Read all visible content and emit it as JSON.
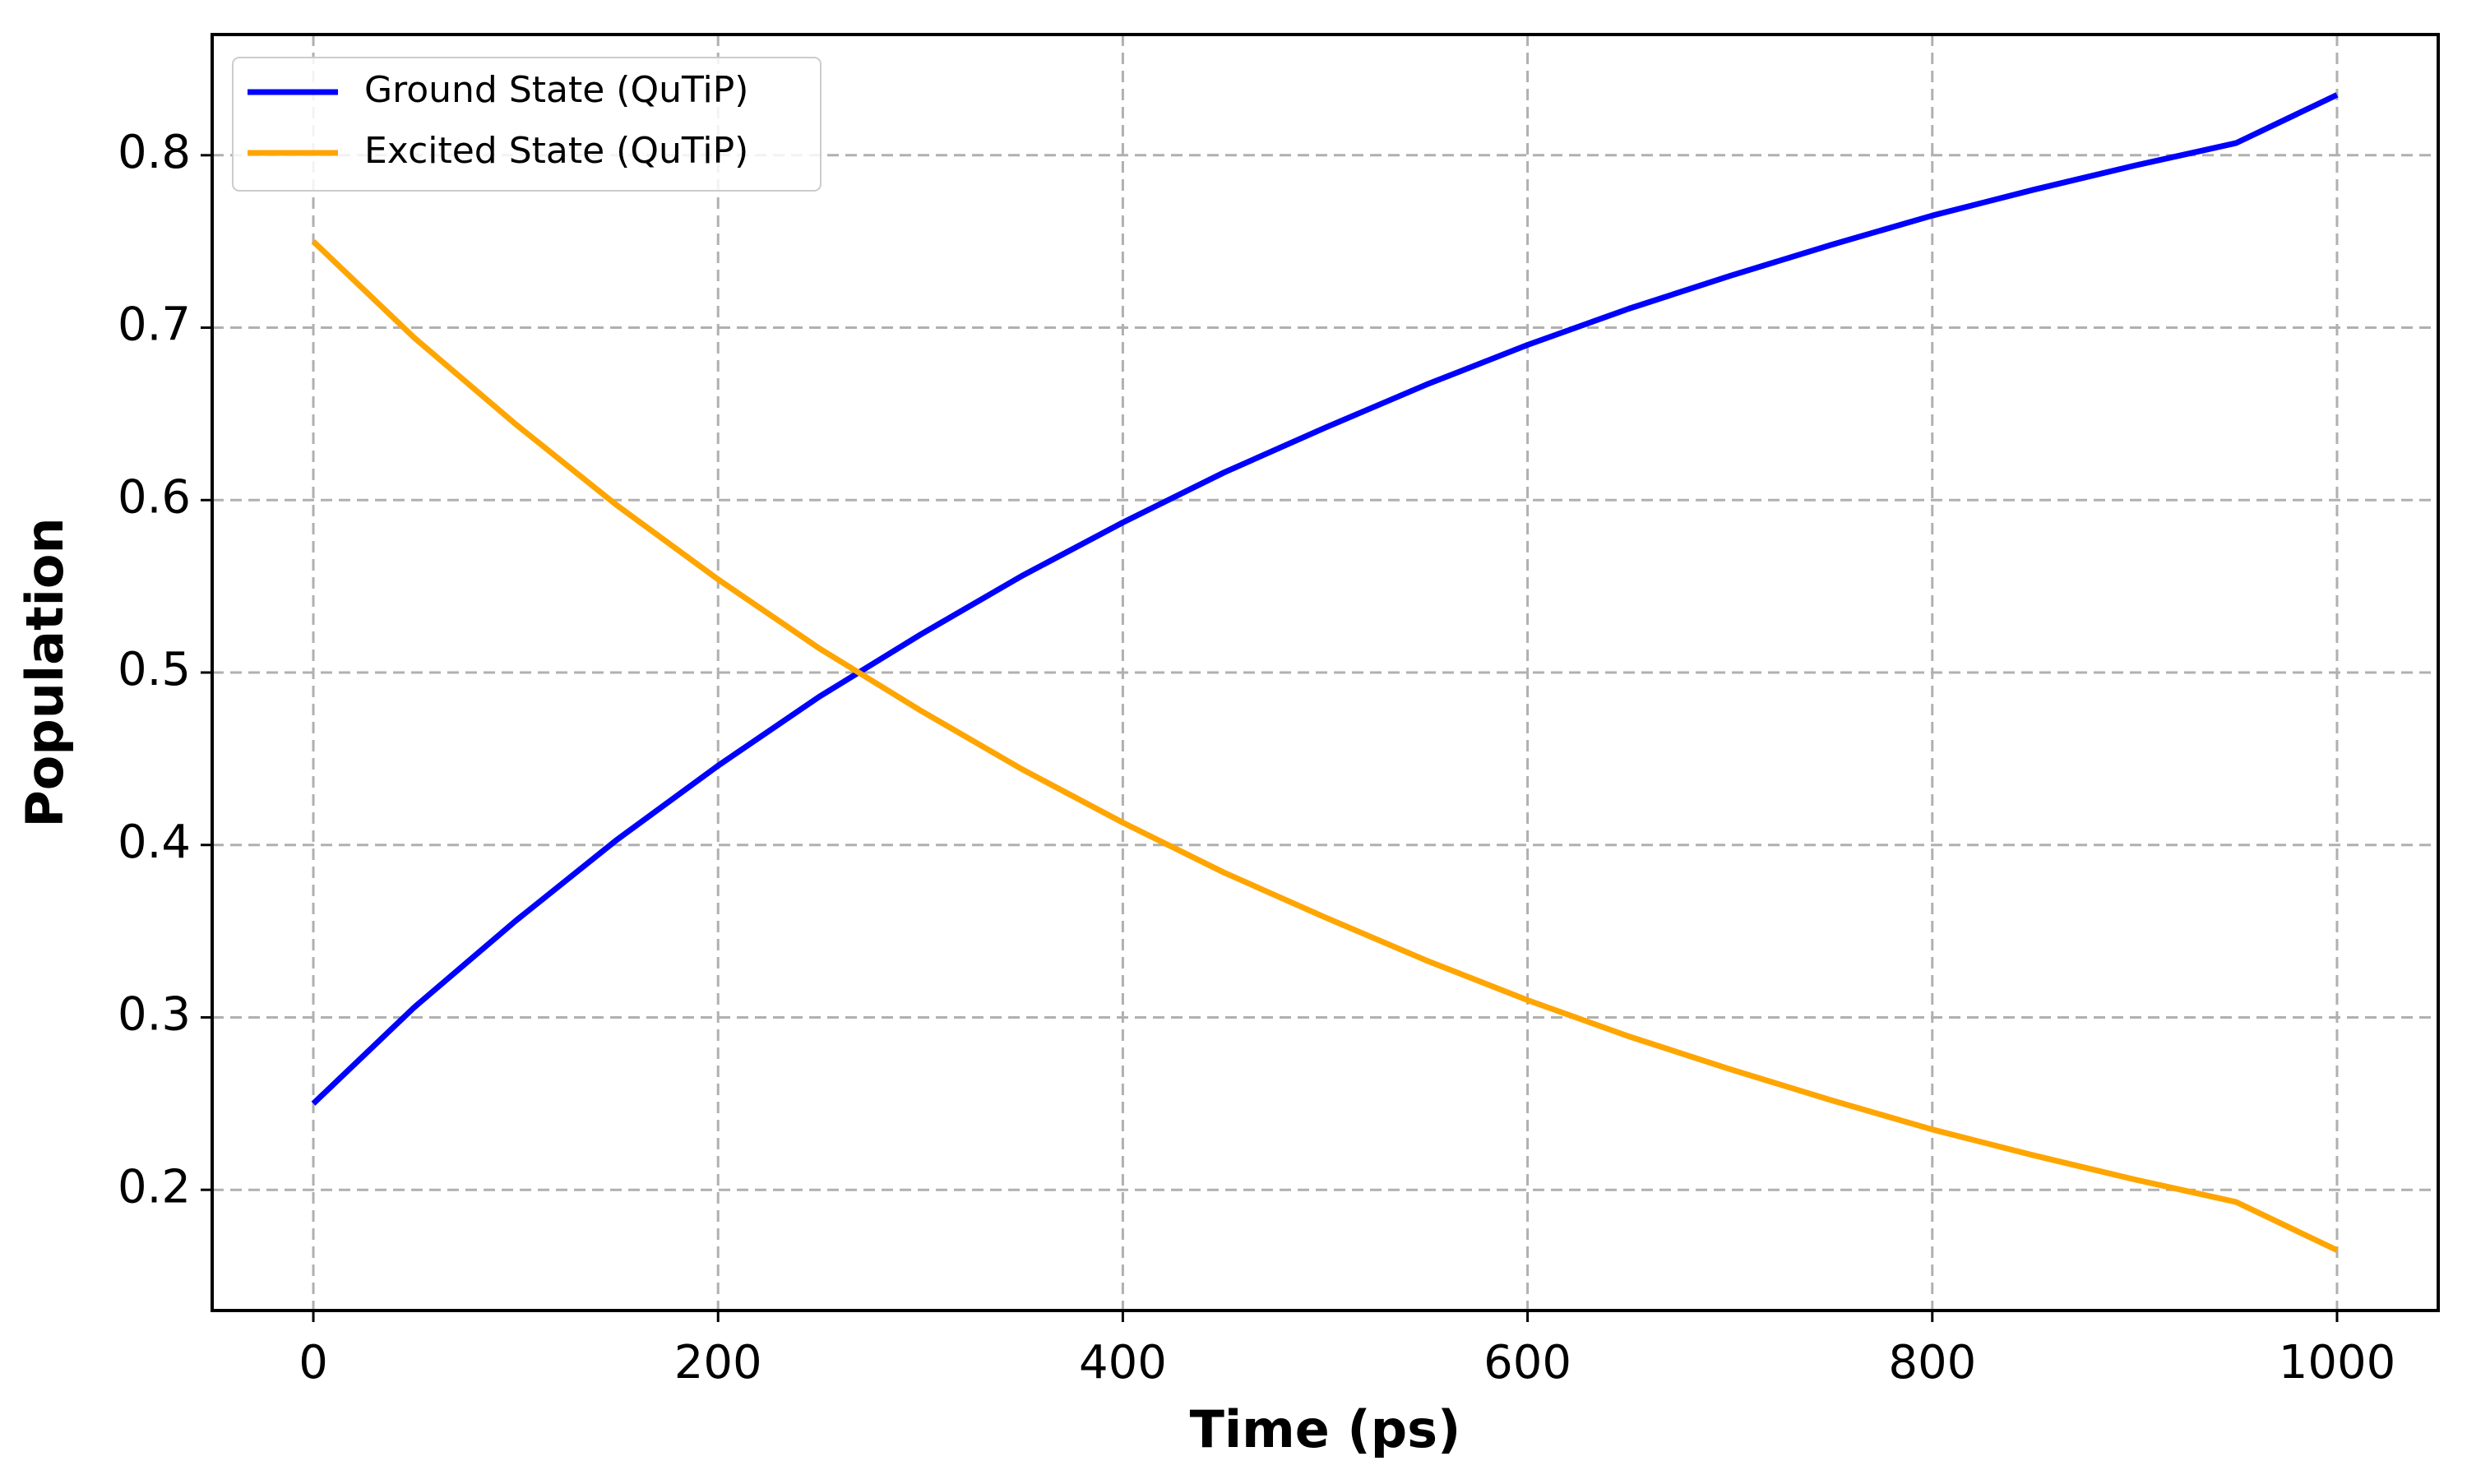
{
  "chart_data": {
    "type": "line",
    "title": "",
    "xlabel": "Time (ps)",
    "ylabel": "Population",
    "xlim": [
      -50,
      1050
    ],
    "ylim": [
      0.13,
      0.87
    ],
    "xticks": [
      0,
      200,
      400,
      600,
      800,
      1000
    ],
    "yticks": [
      0.2,
      0.3,
      0.4,
      0.5,
      0.6,
      0.7,
      0.8
    ],
    "xtick_labels": [
      "0",
      "200",
      "400",
      "600",
      "800",
      "1000"
    ],
    "ytick_labels": [
      "0.2",
      "0.3",
      "0.4",
      "0.5",
      "0.6",
      "0.7",
      "0.8"
    ],
    "grid": true,
    "grid_style": "dashed",
    "legend_position": "upper-left",
    "x": [
      0,
      50,
      100,
      150,
      200,
      250,
      300,
      350,
      400,
      450,
      500,
      550,
      600,
      650,
      700,
      750,
      800,
      850,
      900,
      950,
      1000
    ],
    "series": [
      {
        "name": "Ground State (QuTiP)",
        "color": "#0000ff",
        "values": [
          0.25,
          0.306,
          0.356,
          0.403,
          0.446,
          0.486,
          0.522,
          0.556,
          0.587,
          0.616,
          0.642,
          0.667,
          0.69,
          0.711,
          0.73,
          0.748,
          0.765,
          0.78,
          0.794,
          0.807,
          0.835
        ]
      },
      {
        "name": "Excited State (QuTiP)",
        "color": "#ffa500",
        "values": [
          0.75,
          0.694,
          0.644,
          0.597,
          0.554,
          0.514,
          0.478,
          0.444,
          0.413,
          0.384,
          0.358,
          0.333,
          0.31,
          0.289,
          0.27,
          0.252,
          0.235,
          0.22,
          0.206,
          0.193,
          0.165
        ]
      }
    ]
  }
}
